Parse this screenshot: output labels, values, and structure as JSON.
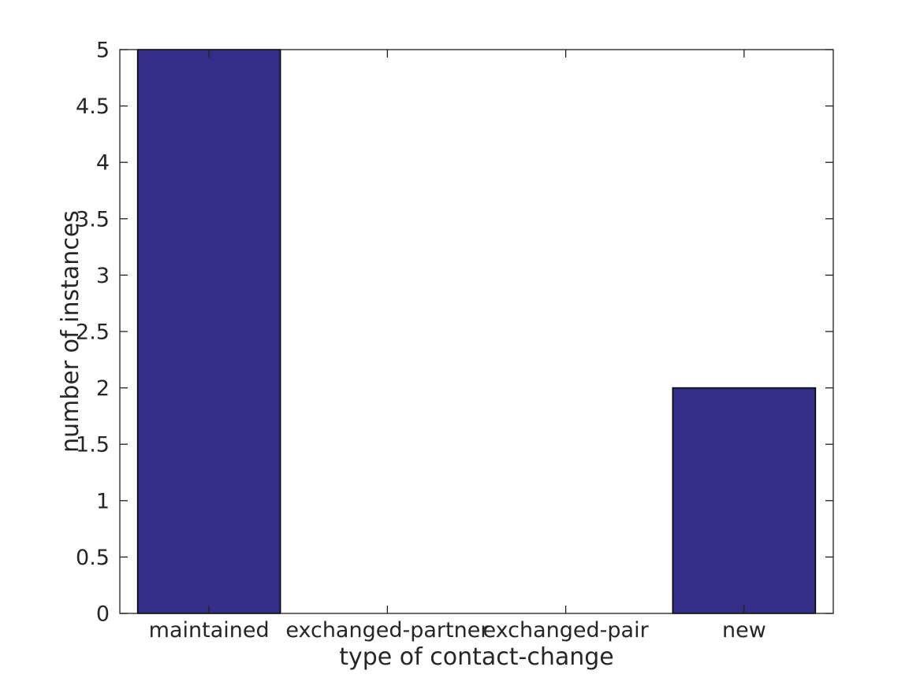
{
  "chart_data": {
    "type": "bar",
    "title": "",
    "xlabel": "type of contact-change",
    "ylabel": "number of instances",
    "categories": [
      "maintained",
      "exchanged-partner",
      "exchanged-pair",
      "new"
    ],
    "values": [
      5,
      0,
      0,
      2
    ],
    "ylim": [
      0,
      5
    ],
    "yticks": [
      "0",
      "0.5",
      "1",
      "1.5",
      "2",
      "2.5",
      "3",
      "3.5",
      "4",
      "4.5",
      "5"
    ],
    "bar_width_frac": 0.8,
    "grid": false,
    "legend": "none",
    "box": true,
    "tick_direction": "in",
    "colors": {
      "bar_fill": "#352E88",
      "bar_edge": "#000000",
      "axis": "#1f1f1f",
      "text": "#262626",
      "background": "#FFFFFF"
    }
  }
}
